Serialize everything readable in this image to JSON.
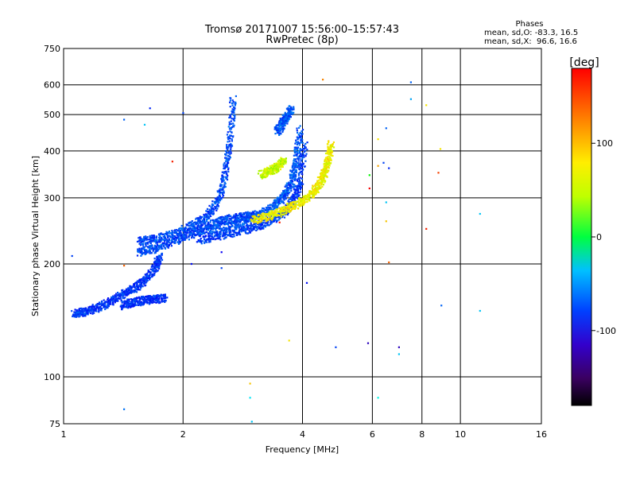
{
  "chart_data": {
    "type": "scatter",
    "title": "Tromsø 20171007 15:56:00–15:57:43",
    "subtitle": "RwPretec (8p)",
    "xlabel": "Frequency [MHz]",
    "ylabel": "Stationary phase Virtual Height [km]",
    "x_scale": "log",
    "y_scale": "log",
    "xlim": [
      1,
      16
    ],
    "ylim": [
      75,
      750
    ],
    "x_ticks": [
      1,
      2,
      4,
      6,
      8,
      10,
      16
    ],
    "y_ticks": [
      75,
      100,
      200,
      300,
      400,
      500,
      600,
      750
    ],
    "x_grid": [
      2,
      4,
      6,
      8,
      10
    ],
    "y_grid": [
      100,
      200,
      300,
      400,
      500,
      600
    ],
    "grid": true,
    "stats": {
      "heading": "Phases",
      "line_o": "mean, sd,O: -83.3, 16.5",
      "line_x": "mean, sd,X:  96.6, 16.6"
    },
    "colorbar": {
      "label": "[deg]",
      "range": [
        -180,
        180
      ],
      "ticks": [
        100,
        0,
        -100
      ],
      "colormap": "rainbow"
    },
    "traces": [
      {
        "name_hint": "o-low",
        "phase": -105,
        "x": [
          1.06,
          1.12,
          1.2,
          1.3,
          1.4,
          1.5,
          1.6,
          1.7,
          1.75
        ],
        "y": [
          147,
          149,
          152,
          158,
          165,
          172,
          180,
          195,
          210
        ]
      },
      {
        "name_hint": "o-low-lower",
        "phase": -108,
        "x": [
          1.4,
          1.5,
          1.6,
          1.7,
          1.8
        ],
        "y": [
          155,
          158,
          160,
          161,
          162
        ]
      },
      {
        "name_hint": "o-mid",
        "phase": -98,
        "x": [
          1.55,
          1.7,
          1.9,
          2.1,
          2.3,
          2.45,
          2.55,
          2.62,
          2.68
        ],
        "y": [
          230,
          233,
          240,
          252,
          268,
          295,
          340,
          420,
          560
        ]
      },
      {
        "name_hint": "o-mid-2",
        "phase": -100,
        "x": [
          1.55,
          1.7,
          1.9,
          2.1,
          2.3,
          2.5,
          2.7,
          2.9,
          3.1
        ],
        "y": [
          215,
          220,
          230,
          240,
          252,
          260,
          265,
          268,
          272
        ]
      },
      {
        "name_hint": "o-high",
        "phase": -95,
        "x": [
          2.2,
          2.5,
          2.8,
          3.1,
          3.4,
          3.6,
          3.75,
          3.85,
          3.95
        ],
        "y": [
          245,
          250,
          258,
          268,
          285,
          305,
          330,
          370,
          460
        ]
      },
      {
        "name_hint": "o-high-2",
        "phase": -103,
        "x": [
          2.2,
          2.5,
          2.8,
          3.1,
          3.35,
          3.6,
          3.8,
          3.95,
          4.05
        ],
        "y": [
          232,
          238,
          245,
          253,
          262,
          275,
          295,
          330,
          420
        ]
      },
      {
        "name_hint": "x-high",
        "phase": 105,
        "x": [
          3.0,
          3.3,
          3.6,
          3.9,
          4.2,
          4.4,
          4.55,
          4.65,
          4.72
        ],
        "y": [
          262,
          268,
          278,
          290,
          305,
          325,
          350,
          380,
          420
        ]
      },
      {
        "name_hint": "x-upper",
        "phase": 90,
        "x": [
          3.15,
          3.3,
          3.45,
          3.6
        ],
        "y": [
          345,
          352,
          362,
          378
        ]
      },
      {
        "name_hint": "scatter-upper",
        "phase": -95,
        "x": [
          3.45,
          3.55,
          3.65,
          3.75
        ],
        "y": [
          450,
          470,
          495,
          520
        ]
      }
    ],
    "isolated_points": [
      {
        "x": 1.05,
        "y": 210,
        "phase": -100
      },
      {
        "x": 1.42,
        "y": 485,
        "phase": -90
      },
      {
        "x": 1.42,
        "y": 82,
        "phase": -85
      },
      {
        "x": 1.42,
        "y": 198,
        "phase": 150
      },
      {
        "x": 1.6,
        "y": 470,
        "phase": -60
      },
      {
        "x": 1.65,
        "y": 520,
        "phase": -110
      },
      {
        "x": 1.88,
        "y": 375,
        "phase": 170
      },
      {
        "x": 2.0,
        "y": 505,
        "phase": -100
      },
      {
        "x": 2.1,
        "y": 200,
        "phase": -120
      },
      {
        "x": 2.5,
        "y": 215,
        "phase": -130
      },
      {
        "x": 2.5,
        "y": 195,
        "phase": -100
      },
      {
        "x": 2.95,
        "y": 96,
        "phase": 120
      },
      {
        "x": 2.95,
        "y": 88,
        "phase": -50
      },
      {
        "x": 2.98,
        "y": 76,
        "phase": -60
      },
      {
        "x": 3.5,
        "y": 258,
        "phase": 170
      },
      {
        "x": 3.7,
        "y": 125,
        "phase": 110
      },
      {
        "x": 4.1,
        "y": 178,
        "phase": -120
      },
      {
        "x": 4.5,
        "y": 620,
        "phase": 140
      },
      {
        "x": 4.85,
        "y": 120,
        "phase": -100
      },
      {
        "x": 5.85,
        "y": 123,
        "phase": -150
      },
      {
        "x": 5.9,
        "y": 318,
        "phase": 180
      },
      {
        "x": 5.9,
        "y": 345,
        "phase": 30
      },
      {
        "x": 6.2,
        "y": 430,
        "phase": 110
      },
      {
        "x": 6.2,
        "y": 365,
        "phase": 130
      },
      {
        "x": 6.2,
        "y": 88,
        "phase": -40
      },
      {
        "x": 6.4,
        "y": 372,
        "phase": -100
      },
      {
        "x": 6.5,
        "y": 460,
        "phase": -90
      },
      {
        "x": 6.5,
        "y": 292,
        "phase": -60
      },
      {
        "x": 6.5,
        "y": 260,
        "phase": 120
      },
      {
        "x": 6.6,
        "y": 202,
        "phase": 150
      },
      {
        "x": 6.6,
        "y": 360,
        "phase": -110
      },
      {
        "x": 7.0,
        "y": 120,
        "phase": -150
      },
      {
        "x": 7.0,
        "y": 115,
        "phase": -60
      },
      {
        "x": 7.5,
        "y": 610,
        "phase": -90
      },
      {
        "x": 7.5,
        "y": 550,
        "phase": -70
      },
      {
        "x": 8.2,
        "y": 530,
        "phase": 110
      },
      {
        "x": 8.2,
        "y": 248,
        "phase": 170
      },
      {
        "x": 8.8,
        "y": 350,
        "phase": 160
      },
      {
        "x": 8.9,
        "y": 405,
        "phase": 110
      },
      {
        "x": 8.95,
        "y": 155,
        "phase": -90
      },
      {
        "x": 11.2,
        "y": 272,
        "phase": -60
      },
      {
        "x": 11.2,
        "y": 150,
        "phase": -60
      }
    ]
  }
}
